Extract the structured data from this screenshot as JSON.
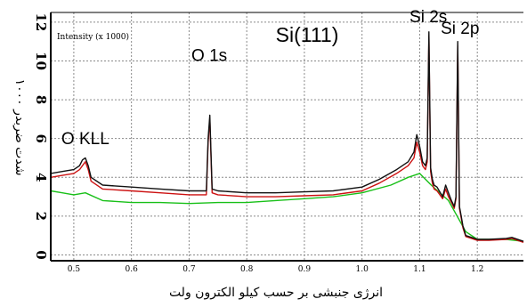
{
  "chart_data": {
    "type": "line",
    "title": "Si(111)",
    "intensity_note": "Intensity (x 1000)",
    "xlabel": "انرژی جنبشی بر حسب کیلو الکترون ولت",
    "ylabel": "شدت ضربدر ۱۰۰۰",
    "x_ticks": [
      "0.5",
      "0.6",
      "0.7",
      "0.8",
      "0.9",
      "1.0",
      "1.1",
      "1.2"
    ],
    "y_ticks": [
      "0",
      "2",
      "4",
      "6",
      "8",
      "10",
      "12"
    ],
    "xlim": [
      0.46,
      1.28
    ],
    "ylim": [
      -0.3,
      12.5
    ],
    "grid": true,
    "annotations": [
      {
        "text": "O KLL",
        "x": 0.52,
        "y": 5.7
      },
      {
        "text": "O 1s",
        "x": 0.735,
        "y": 10.0
      },
      {
        "text": "Si 2s",
        "x": 1.115,
        "y": 12.0
      },
      {
        "text": "Si 2p",
        "x": 1.17,
        "y": 11.4
      }
    ],
    "series": [
      {
        "color": "#111111",
        "x": [
          0.46,
          0.48,
          0.5,
          0.51,
          0.515,
          0.52,
          0.525,
          0.53,
          0.55,
          0.6,
          0.65,
          0.7,
          0.72,
          0.73,
          0.733,
          0.736,
          0.74,
          0.75,
          0.8,
          0.85,
          0.9,
          0.95,
          1.0,
          1.03,
          1.06,
          1.08,
          1.09,
          1.095,
          1.1,
          1.105,
          1.11,
          1.113,
          1.116,
          1.119,
          1.122,
          1.125,
          1.13,
          1.14,
          1.145,
          1.15,
          1.155,
          1.16,
          1.163,
          1.166,
          1.169,
          1.172,
          1.175,
          1.18,
          1.19,
          1.2,
          1.22,
          1.25,
          1.26,
          1.28
        ],
        "y": [
          4.2,
          4.3,
          4.4,
          4.6,
          4.9,
          5.0,
          4.6,
          4.0,
          3.6,
          3.5,
          3.4,
          3.3,
          3.3,
          3.3,
          6.0,
          7.2,
          3.4,
          3.3,
          3.2,
          3.2,
          3.25,
          3.3,
          3.5,
          3.9,
          4.4,
          4.8,
          5.3,
          6.2,
          5.6,
          4.8,
          4.6,
          5.0,
          11.5,
          4.5,
          3.9,
          3.6,
          3.5,
          3.0,
          3.6,
          3.2,
          2.8,
          2.5,
          3.0,
          11.0,
          2.5,
          2.0,
          1.5,
          1.0,
          0.9,
          0.8,
          0.8,
          0.85,
          0.9,
          0.7
        ]
      },
      {
        "color": "#cc1111",
        "x": [
          0.46,
          0.48,
          0.5,
          0.51,
          0.515,
          0.52,
          0.525,
          0.53,
          0.55,
          0.6,
          0.65,
          0.7,
          0.72,
          0.73,
          0.733,
          0.736,
          0.74,
          0.75,
          0.8,
          0.85,
          0.9,
          0.95,
          1.0,
          1.03,
          1.06,
          1.08,
          1.09,
          1.095,
          1.1,
          1.105,
          1.11,
          1.113,
          1.116,
          1.119,
          1.122,
          1.125,
          1.13,
          1.14,
          1.145,
          1.15,
          1.155,
          1.16,
          1.163,
          1.166,
          1.169,
          1.172,
          1.175,
          1.18,
          1.19,
          1.2,
          1.22,
          1.25,
          1.26,
          1.28
        ],
        "y": [
          4.0,
          4.1,
          4.2,
          4.4,
          4.6,
          4.8,
          4.4,
          3.8,
          3.4,
          3.3,
          3.2,
          3.1,
          3.1,
          3.1,
          5.8,
          7.0,
          3.2,
          3.1,
          3.0,
          3.0,
          3.05,
          3.1,
          3.3,
          3.7,
          4.2,
          4.6,
          5.0,
          5.8,
          5.3,
          4.6,
          4.4,
          4.8,
          11.3,
          4.3,
          3.7,
          3.4,
          3.3,
          2.9,
          3.4,
          3.0,
          2.7,
          2.4,
          2.9,
          10.8,
          2.4,
          1.9,
          1.4,
          0.95,
          0.85,
          0.75,
          0.75,
          0.8,
          0.85,
          0.65
        ]
      },
      {
        "color": "#18c018",
        "x": [
          0.46,
          0.48,
          0.5,
          0.52,
          0.55,
          0.6,
          0.65,
          0.7,
          0.75,
          0.8,
          0.85,
          0.9,
          0.95,
          1.0,
          1.05,
          1.08,
          1.1,
          1.12,
          1.15,
          1.18,
          1.2,
          1.25,
          1.28
        ],
        "y": [
          3.3,
          3.2,
          3.1,
          3.2,
          2.8,
          2.7,
          2.7,
          2.65,
          2.7,
          2.7,
          2.8,
          2.9,
          3.0,
          3.2,
          3.6,
          4.0,
          4.2,
          3.6,
          2.8,
          1.2,
          0.8,
          0.8,
          0.7
        ]
      }
    ]
  }
}
